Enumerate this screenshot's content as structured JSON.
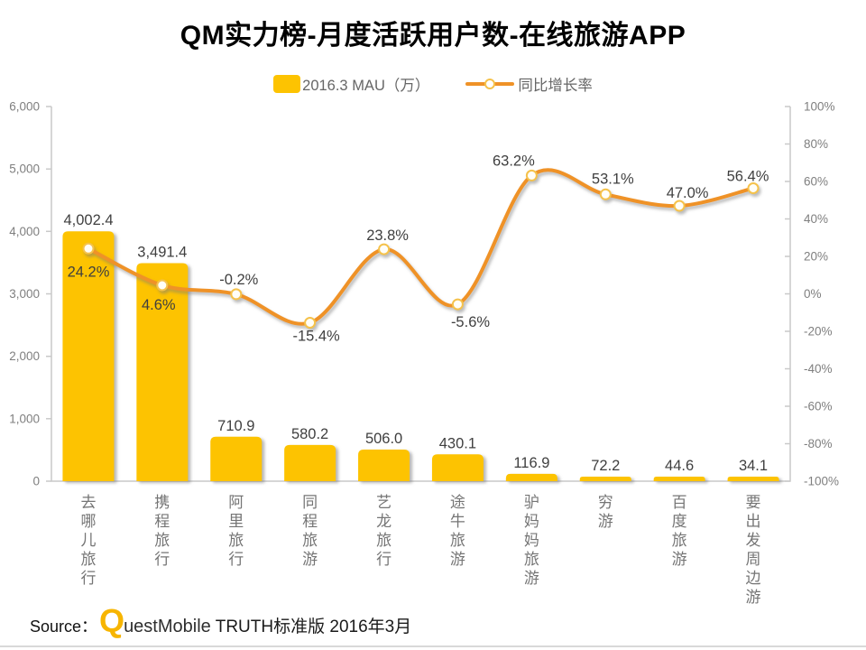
{
  "title": "QM实力榜-月度活跃用户数-在线旅游APP",
  "legend": {
    "bar_label": "2016.3 MAU（万）",
    "line_label": "同比增长率"
  },
  "source": {
    "label": "Source：",
    "brand_q": "Q",
    "brand_rest": "uestMobile",
    "rest": " TRUTH标准版 2016年3月"
  },
  "colors": {
    "bar": "#FDC301",
    "line": "#EF9227",
    "marker_fill": "#FFFEF8",
    "marker_stroke": "#F5C24B",
    "axis": "#C9C9C9",
    "tick_label": "#7F7F7F",
    "data_label": "#3F3F3F",
    "category_label": "#757575",
    "title": "#000000"
  },
  "chart_data": {
    "type": "combo",
    "title": "QM实力榜-月度活跃用户数-在线旅游APP",
    "categories": [
      "去哪儿旅行",
      "携程旅行",
      "阿里旅行",
      "同程旅游",
      "艺龙旅行",
      "途牛旅游",
      "驴妈妈旅游",
      "穷游",
      "百度旅游",
      "要出发周边游"
    ],
    "series": [
      {
        "name": "2016.3 MAU（万）",
        "type": "bar",
        "axis": "left",
        "values": [
          4002.4,
          3491.4,
          710.9,
          580.2,
          506.0,
          430.1,
          116.9,
          72.2,
          44.6,
          34.1
        ],
        "labels": [
          "4,002.4",
          "3,491.4",
          "710.9",
          "580.2",
          "506.0",
          "430.1",
          "116.9",
          "72.2",
          "44.6",
          "34.1"
        ]
      },
      {
        "name": "同比增长率",
        "type": "line",
        "axis": "right",
        "values_percent": [
          24.2,
          4.6,
          -0.2,
          -15.4,
          23.8,
          -5.6,
          63.2,
          53.1,
          47.0,
          56.4
        ],
        "labels": [
          "24.2%",
          "4.6%",
          "-0.2%",
          "-15.4%",
          "23.8%",
          "-5.6%",
          "63.2%",
          "53.1%",
          "47.0%",
          "56.4%"
        ],
        "label_offsets": [
          [
            0,
            26
          ],
          [
            -4,
            22
          ],
          [
            3,
            -16
          ],
          [
            7,
            15
          ],
          [
            4,
            -15
          ],
          [
            14,
            20
          ],
          [
            -20,
            -16
          ],
          [
            8,
            -17
          ],
          [
            9,
            -14
          ],
          [
            -6,
            -13
          ]
        ]
      }
    ],
    "left_axis": {
      "min": 0,
      "max": 6000,
      "step": 1000,
      "tick_labels": [
        "0",
        "1,000",
        "2,000",
        "3,000",
        "4,000",
        "5,000",
        "6,000"
      ]
    },
    "right_axis": {
      "min": -100,
      "max": 100,
      "step": 20,
      "tick_labels": [
        "-100%",
        "-80%",
        "-60%",
        "-40%",
        "-20%",
        "0%",
        "20%",
        "40%",
        "60%",
        "80%",
        "100%"
      ]
    },
    "grid": false,
    "legend_position": "top",
    "smooth_line": true
  }
}
